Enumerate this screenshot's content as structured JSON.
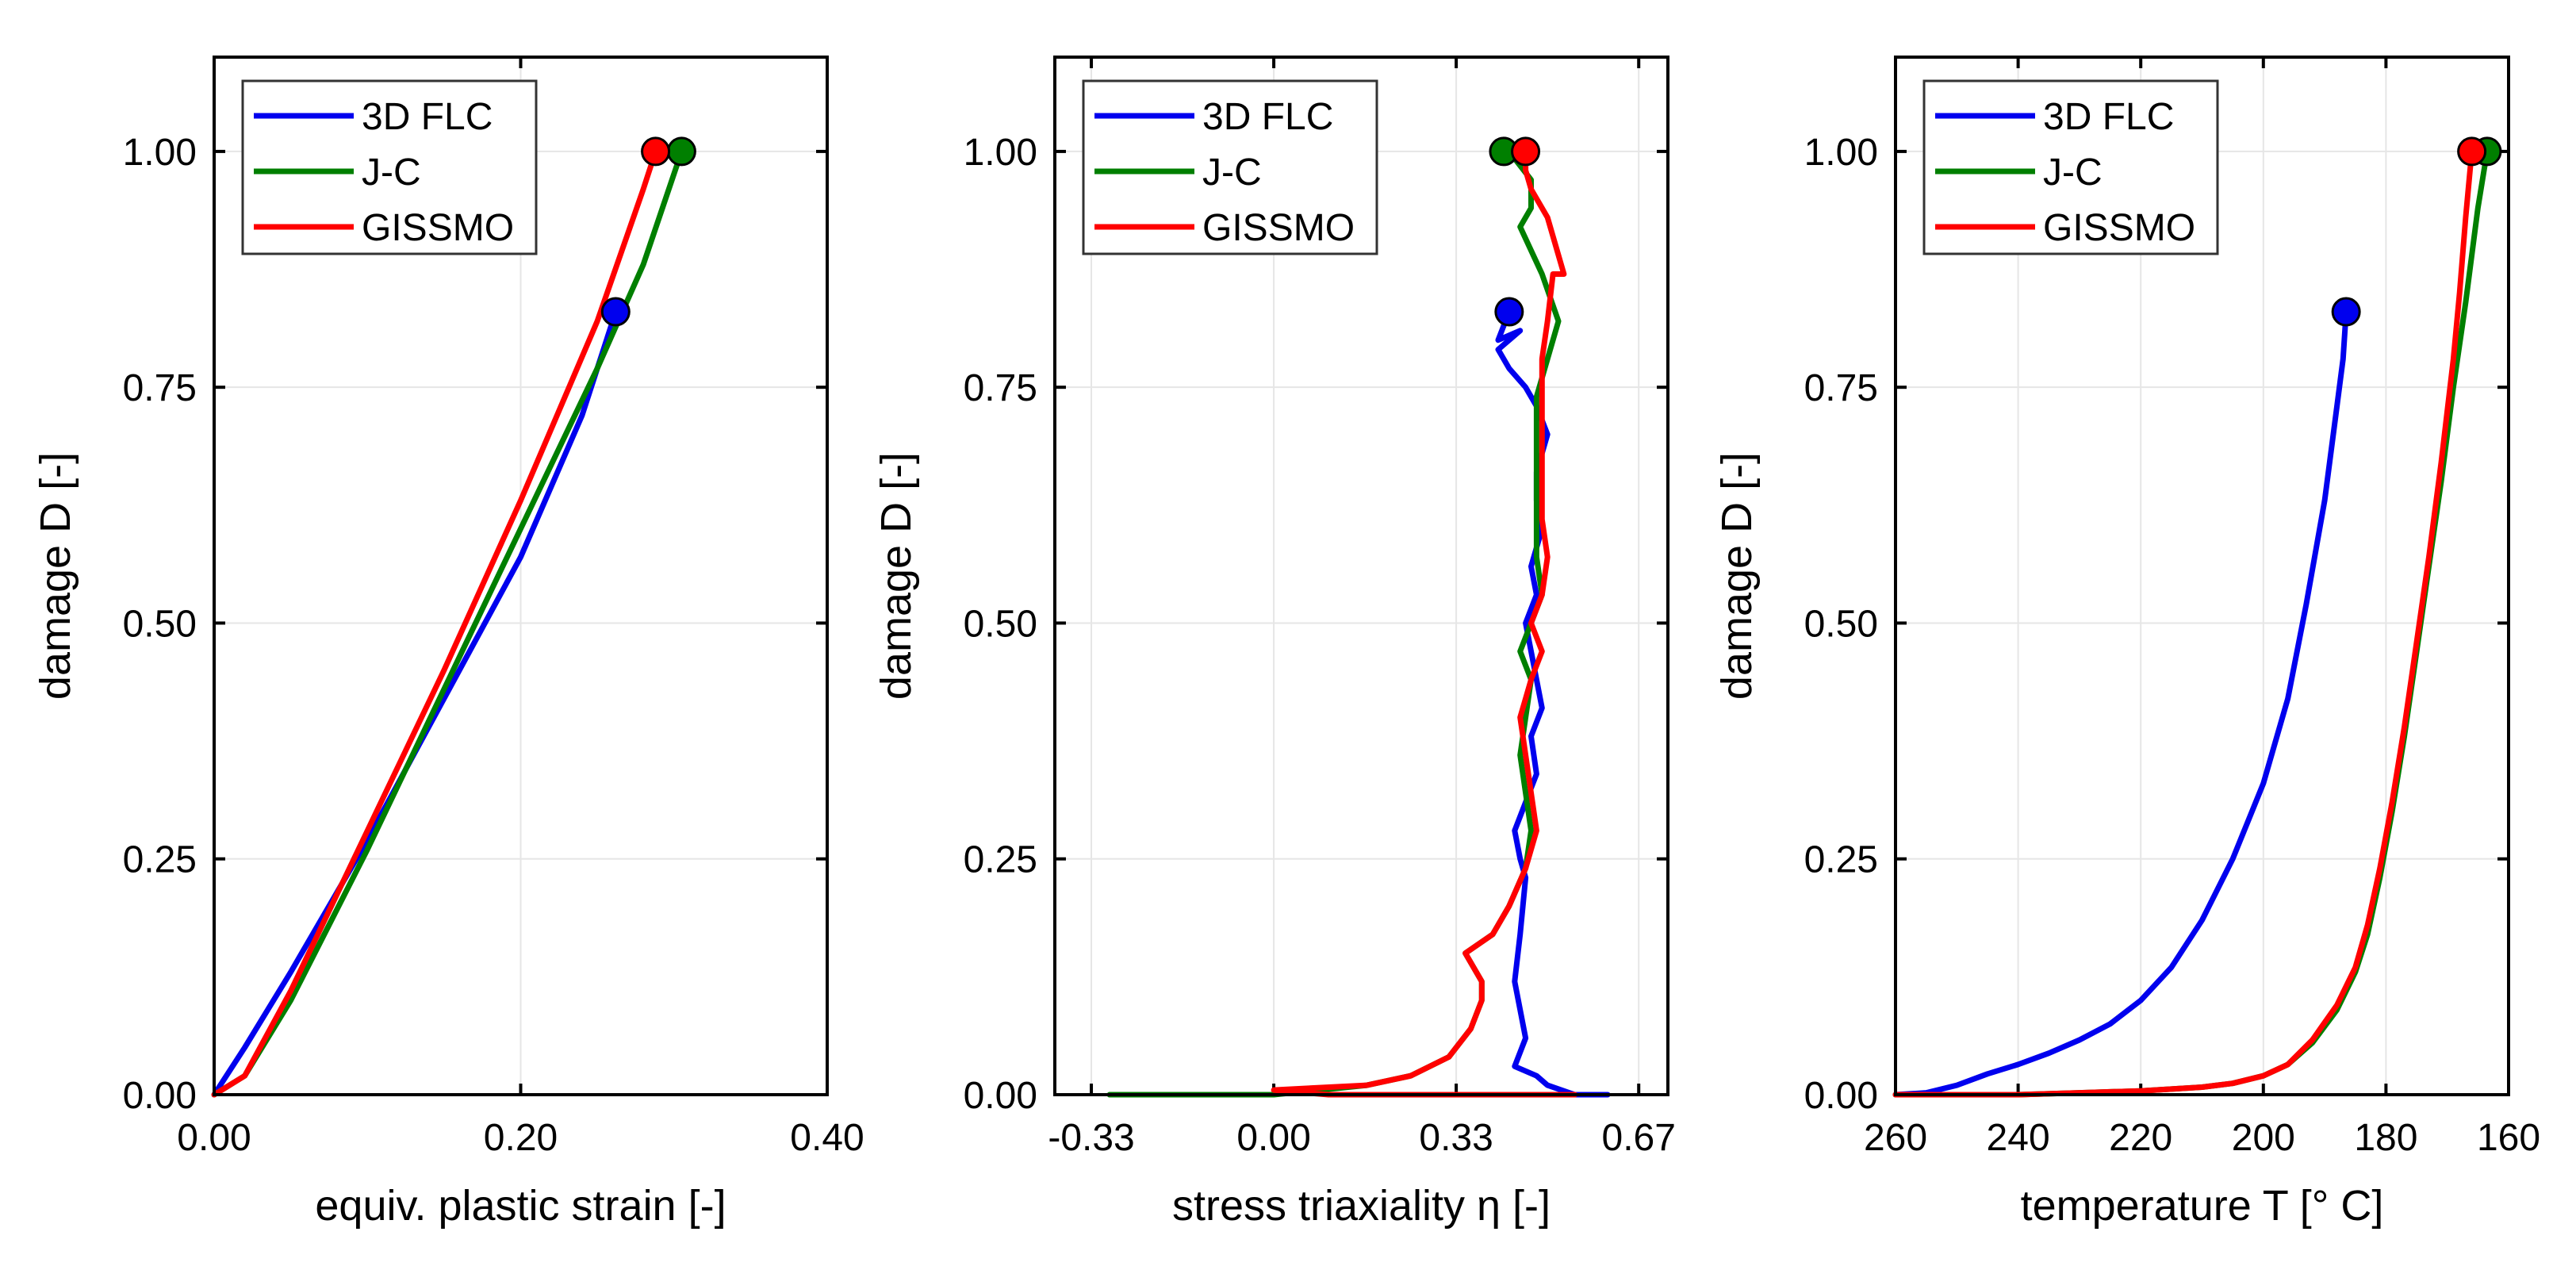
{
  "chart_data": [
    {
      "type": "line",
      "title": "",
      "xlabel": "equiv. plastic strain [-]",
      "ylabel": "damage D [-]",
      "xlim": [
        0,
        0.4
      ],
      "ylim": [
        0,
        1.1
      ],
      "x_reversed": false,
      "xticks": [
        0,
        0.2,
        0.4
      ],
      "xtick_labels": [
        "0.00",
        "0.20",
        "0.40"
      ],
      "yticks": [
        0,
        0.25,
        0.5,
        0.75,
        1.0
      ],
      "ytick_labels": [
        "0.00",
        "0.25",
        "0.50",
        "0.75",
        "1.00"
      ],
      "legend": "top-left",
      "series": [
        {
          "name": "3D FLC",
          "color": "#0000ee",
          "x": [
            0,
            0.02,
            0.05,
            0.1,
            0.15,
            0.2,
            0.24,
            0.262
          ],
          "y": [
            0,
            0.05,
            0.13,
            0.27,
            0.42,
            0.57,
            0.72,
            0.83
          ]
        },
        {
          "name": "J-C",
          "color": "#007f00",
          "x": [
            0,
            0.02,
            0.05,
            0.1,
            0.15,
            0.2,
            0.25,
            0.28,
            0.305
          ],
          "y": [
            0,
            0.02,
            0.1,
            0.26,
            0.43,
            0.6,
            0.77,
            0.88,
            1.0
          ]
        },
        {
          "name": "GISSMO",
          "color": "#ff0000",
          "x": [
            0,
            0.02,
            0.05,
            0.1,
            0.15,
            0.2,
            0.25,
            0.28,
            0.288
          ],
          "y": [
            0,
            0.02,
            0.11,
            0.28,
            0.45,
            0.63,
            0.82,
            0.96,
            1.0
          ]
        }
      ]
    },
    {
      "type": "line",
      "title": "",
      "xlabel": "stress triaxiality η [-]",
      "ylabel": "damage D [-]",
      "xlim": [
        -0.4,
        0.72
      ],
      "ylim": [
        0,
        1.1
      ],
      "x_reversed": false,
      "xticks": [
        -0.3333,
        0,
        0.3333,
        0.6667
      ],
      "xtick_labels": [
        "-0.33",
        "0.00",
        "0.33",
        "0.67"
      ],
      "yticks": [
        0,
        0.25,
        0.5,
        0.75,
        1.0
      ],
      "ytick_labels": [
        "0.00",
        "0.25",
        "0.50",
        "0.75",
        "1.00"
      ],
      "legend": "top-left",
      "series": [
        {
          "name": "3D FLC",
          "color": "#0000ee",
          "x": [
            0.61,
            0.55,
            0.5,
            0.48,
            0.44,
            0.46,
            0.44,
            0.45,
            0.46,
            0.45,
            0.44,
            0.46,
            0.48,
            0.47,
            0.49,
            0.48,
            0.47,
            0.46,
            0.48,
            0.47,
            0.49,
            0.48,
            0.48,
            0.5,
            0.48,
            0.46,
            0.43,
            0.41,
            0.45,
            0.41,
            0.43
          ],
          "y": [
            0,
            0,
            0.01,
            0.02,
            0.03,
            0.06,
            0.12,
            0.17,
            0.23,
            0.25,
            0.28,
            0.31,
            0.34,
            0.38,
            0.41,
            0.44,
            0.47,
            0.5,
            0.53,
            0.56,
            0.6,
            0.63,
            0.66,
            0.7,
            0.73,
            0.75,
            0.77,
            0.79,
            0.81,
            0.8,
            0.83
          ]
        },
        {
          "name": "J-C",
          "color": "#007f00",
          "x": [
            -0.3,
            0.0,
            0.17,
            0.25,
            0.32,
            0.36,
            0.38,
            0.38,
            0.35,
            0.4,
            0.43,
            0.46,
            0.47,
            0.46,
            0.45,
            0.46,
            0.47,
            0.45,
            0.47,
            0.49,
            0.48,
            0.48,
            0.48,
            0.48,
            0.48,
            0.5,
            0.52,
            0.49,
            0.45,
            0.47,
            0.47,
            0.43,
            0.42
          ],
          "y": [
            0,
            0,
            0.01,
            0.02,
            0.04,
            0.07,
            0.1,
            0.12,
            0.15,
            0.17,
            0.2,
            0.24,
            0.28,
            0.32,
            0.36,
            0.4,
            0.44,
            0.47,
            0.5,
            0.53,
            0.57,
            0.61,
            0.66,
            0.7,
            0.74,
            0.78,
            0.82,
            0.87,
            0.92,
            0.94,
            0.97,
            1.0,
            1.0
          ]
        },
        {
          "name": "GISSMO",
          "color": "#ff0000",
          "x": [
            0.55,
            0.3,
            0.2,
            0.1,
            0.0,
            0.17,
            0.25,
            0.32,
            0.36,
            0.38,
            0.38,
            0.35,
            0.4,
            0.43,
            0.46,
            0.48,
            0.47,
            0.46,
            0.45,
            0.47,
            0.49,
            0.47,
            0.49,
            0.5,
            0.49,
            0.49,
            0.49,
            0.49,
            0.49,
            0.5,
            0.51,
            0.53,
            0.5,
            0.47,
            0.46,
            0.46
          ],
          "y": [
            0,
            0,
            0,
            0,
            0.005,
            0.01,
            0.02,
            0.04,
            0.07,
            0.1,
            0.12,
            0.15,
            0.17,
            0.2,
            0.24,
            0.28,
            0.32,
            0.36,
            0.4,
            0.44,
            0.47,
            0.5,
            0.53,
            0.57,
            0.61,
            0.66,
            0.7,
            0.74,
            0.78,
            0.82,
            0.87,
            0.87,
            0.93,
            0.96,
            0.98,
            1.0
          ]
        }
      ]
    },
    {
      "type": "line",
      "title": "",
      "xlabel": "temperature T [° C]",
      "ylabel": "damage D [-]",
      "xlim": [
        260,
        160
      ],
      "ylim": [
        0,
        1.1
      ],
      "x_reversed": true,
      "xticks": [
        260,
        240,
        220,
        200,
        180,
        160
      ],
      "xtick_labels": [
        "260",
        "240",
        "220",
        "200",
        "180",
        "160"
      ],
      "yticks": [
        0,
        0.25,
        0.5,
        0.75,
        1.0
      ],
      "ytick_labels": [
        "0.00",
        "0.25",
        "0.50",
        "0.75",
        "1.00"
      ],
      "legend": "top-left",
      "series": [
        {
          "name": "3D FLC",
          "color": "#0000ee",
          "x": [
            260,
            255,
            250,
            245,
            240,
            235,
            230,
            225,
            220,
            215,
            210,
            205,
            200,
            196,
            193,
            190,
            188,
            187,
            186.5
          ],
          "y": [
            0,
            0.002,
            0.01,
            0.022,
            0.032,
            0.044,
            0.058,
            0.075,
            0.1,
            0.135,
            0.185,
            0.25,
            0.33,
            0.42,
            0.52,
            0.63,
            0.73,
            0.78,
            0.83
          ]
        },
        {
          "name": "J-C",
          "color": "#007f00",
          "x": [
            260,
            250,
            240,
            230,
            220,
            210,
            205,
            200,
            196,
            192,
            188,
            185,
            183,
            181,
            179,
            177,
            175,
            173,
            171,
            169,
            167,
            166,
            165,
            163.5
          ],
          "y": [
            0,
            0,
            0,
            0.002,
            0.004,
            0.008,
            0.012,
            0.02,
            0.032,
            0.055,
            0.09,
            0.13,
            0.17,
            0.23,
            0.3,
            0.38,
            0.47,
            0.56,
            0.65,
            0.75,
            0.84,
            0.89,
            0.94,
            1.0
          ]
        },
        {
          "name": "GISSMO",
          "color": "#ff0000",
          "x": [
            260,
            250,
            240,
            230,
            220,
            210,
            205,
            200,
            196,
            192,
            188,
            185,
            183,
            181,
            179,
            177,
            175,
            173,
            171,
            169,
            168,
            167,
            166
          ],
          "y": [
            0,
            0,
            0,
            0.002,
            0.004,
            0.008,
            0.012,
            0.02,
            0.032,
            0.058,
            0.095,
            0.135,
            0.18,
            0.24,
            0.31,
            0.39,
            0.48,
            0.57,
            0.67,
            0.78,
            0.85,
            0.93,
            1.0
          ]
        }
      ]
    }
  ]
}
